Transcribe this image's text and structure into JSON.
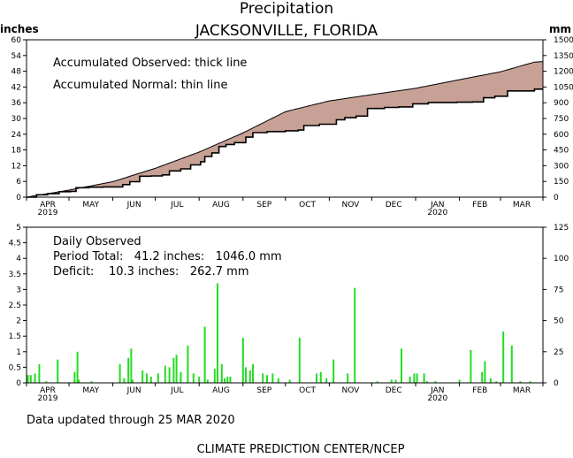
{
  "header": {
    "title": "Precipitation",
    "subtitle": "JACKSONVILLE, FLORIDA",
    "left_unit": "inches",
    "right_unit": "mm"
  },
  "footer": {
    "updated": "Data updated through 25 MAR 2020",
    "credit": "CLIMATE PREDICTION CENTER/NCEP"
  },
  "colors": {
    "deficit_fill": "#c7a096",
    "bars": "#22dd22",
    "axes": "#000000"
  },
  "chart_data": [
    {
      "type": "area",
      "title": "Accumulated",
      "annotations": [
        "Accumulated Observed: thick line",
        "Accumulated Normal: thin line"
      ],
      "x_tick_labels": [
        "APR",
        "MAY",
        "JUN",
        "JUL",
        "AUG",
        "SEP",
        "OCT",
        "NOV",
        "DEC",
        "JAN",
        "FEB",
        "MAR"
      ],
      "x_year_labels": [
        {
          "at": "APR",
          "text": "2019"
        },
        {
          "at": "JAN",
          "text": "2020"
        }
      ],
      "xlim": [
        "2019-04-01",
        "2020-03-31"
      ],
      "y_left": {
        "unit": "inches",
        "range": [
          0,
          60
        ],
        "ticks": [
          0,
          6,
          12,
          18,
          24,
          30,
          36,
          42,
          48,
          54,
          60
        ]
      },
      "y_right": {
        "unit": "mm",
        "range": [
          0,
          1500
        ],
        "ticks": [
          0,
          150,
          300,
          450,
          600,
          750,
          900,
          1050,
          1200,
          1350,
          1500
        ]
      },
      "grid": false,
      "series": [
        {
          "name": "Accumulated Observed",
          "style": "thick",
          "points": [
            [
              "2019-04-01",
              0
            ],
            [
              "2019-04-08",
              0.9
            ],
            [
              "2019-04-16",
              1.3
            ],
            [
              "2019-04-24",
              2.1
            ],
            [
              "2019-05-02",
              2.2
            ],
            [
              "2019-05-06",
              3.6
            ],
            [
              "2019-05-15",
              3.8
            ],
            [
              "2019-05-25",
              3.9
            ],
            [
              "2019-06-03",
              3.9
            ],
            [
              "2019-06-08",
              4.8
            ],
            [
              "2019-06-13",
              5.9
            ],
            [
              "2019-06-20",
              8.0
            ],
            [
              "2019-06-28",
              8.1
            ],
            [
              "2019-07-06",
              8.5
            ],
            [
              "2019-07-11",
              10.0
            ],
            [
              "2019-07-19",
              10.8
            ],
            [
              "2019-07-26",
              12.3
            ],
            [
              "2019-08-02",
              13.5
            ],
            [
              "2019-08-05",
              15.5
            ],
            [
              "2019-08-10",
              16.9
            ],
            [
              "2019-08-15",
              19.3
            ],
            [
              "2019-08-20",
              20.1
            ],
            [
              "2019-08-26",
              20.8
            ],
            [
              "2019-09-03",
              22.9
            ],
            [
              "2019-09-08",
              24.6
            ],
            [
              "2019-09-18",
              25.0
            ],
            [
              "2019-10-01",
              25.3
            ],
            [
              "2019-10-10",
              25.6
            ],
            [
              "2019-10-14",
              27.3
            ],
            [
              "2019-10-25",
              27.8
            ],
            [
              "2019-11-06",
              29.5
            ],
            [
              "2019-11-12",
              30.3
            ],
            [
              "2019-11-20",
              30.9
            ],
            [
              "2019-11-28",
              33.8
            ],
            [
              "2019-12-10",
              34.2
            ],
            [
              "2019-12-20",
              34.4
            ],
            [
              "2019-12-30",
              35.6
            ],
            [
              "2020-01-10",
              36.1
            ],
            [
              "2020-01-30",
              36.2
            ],
            [
              "2020-02-10",
              36.3
            ],
            [
              "2020-02-18",
              37.9
            ],
            [
              "2020-02-26",
              38.5
            ],
            [
              "2020-03-06",
              40.5
            ],
            [
              "2020-03-25",
              41.2
            ]
          ]
        },
        {
          "name": "Accumulated Normal",
          "style": "thin",
          "points": [
            [
              "2019-04-01",
              0
            ],
            [
              "2019-05-01",
              2.7
            ],
            [
              "2019-06-01",
              5.9
            ],
            [
              "2019-07-01",
              11.0
            ],
            [
              "2019-08-01",
              17.2
            ],
            [
              "2019-09-01",
              24.5
            ],
            [
              "2019-10-01",
              32.6
            ],
            [
              "2019-11-01",
              36.7
            ],
            [
              "2019-12-01",
              39.1
            ],
            [
              "2020-01-01",
              41.5
            ],
            [
              "2020-02-01",
              44.8
            ],
            [
              "2020-03-01",
              47.8
            ],
            [
              "2020-03-25",
              51.5
            ]
          ]
        }
      ]
    },
    {
      "type": "bar",
      "title": "Daily Observed",
      "annotations": [
        "Daily Observed",
        "Period Total:   41.2 inches:   1046.0 mm",
        "Deficit:    10.3 inches:   262.7 mm"
      ],
      "x_tick_labels": [
        "APR",
        "MAY",
        "JUN",
        "JUL",
        "AUG",
        "SEP",
        "OCT",
        "NOV",
        "DEC",
        "JAN",
        "FEB",
        "MAR"
      ],
      "x_year_labels": [
        {
          "at": "APR",
          "text": "2019"
        },
        {
          "at": "JAN",
          "text": "2020"
        }
      ],
      "xlim": [
        "2019-04-01",
        "2020-03-31"
      ],
      "y_left": {
        "unit": "inches",
        "range": [
          0,
          5
        ],
        "ticks": [
          0,
          0.5,
          1,
          1.5,
          2,
          2.5,
          3,
          3.5,
          4,
          4.5,
          5
        ]
      },
      "y_right": {
        "unit": "mm",
        "range": [
          0,
          125
        ],
        "ticks": [
          0,
          25,
          50,
          75,
          100,
          125
        ]
      },
      "grid": false,
      "period_total": {
        "inches": 41.2,
        "mm": 1046.0
      },
      "deficit": {
        "inches": 10.3,
        "mm": 262.7
      },
      "series": [
        {
          "name": "Daily Observed",
          "points": [
            [
              "2019-04-02",
              0.25
            ],
            [
              "2019-04-04",
              0.25
            ],
            [
              "2019-04-07",
              0.3
            ],
            [
              "2019-04-10",
              0.6
            ],
            [
              "2019-04-15",
              0.05
            ],
            [
              "2019-04-23",
              0.75
            ],
            [
              "2019-05-05",
              0.35
            ],
            [
              "2019-05-07",
              1.0
            ],
            [
              "2019-05-08",
              0.1
            ],
            [
              "2019-05-17",
              0.05
            ],
            [
              "2019-06-06",
              0.6
            ],
            [
              "2019-06-09",
              0.15
            ],
            [
              "2019-06-12",
              0.8
            ],
            [
              "2019-06-14",
              1.1
            ],
            [
              "2019-06-15",
              0.1
            ],
            [
              "2019-06-22",
              0.4
            ],
            [
              "2019-06-25",
              0.3
            ],
            [
              "2019-06-28",
              0.2
            ],
            [
              "2019-07-03",
              0.3
            ],
            [
              "2019-07-08",
              0.55
            ],
            [
              "2019-07-11",
              0.5
            ],
            [
              "2019-07-14",
              0.8
            ],
            [
              "2019-07-16",
              0.9
            ],
            [
              "2019-07-19",
              0.35
            ],
            [
              "2019-07-24",
              1.2
            ],
            [
              "2019-07-28",
              0.3
            ],
            [
              "2019-08-01",
              0.2
            ],
            [
              "2019-08-05",
              1.8
            ],
            [
              "2019-08-07",
              0.1
            ],
            [
              "2019-08-12",
              0.45
            ],
            [
              "2019-08-14",
              3.2
            ],
            [
              "2019-08-17",
              0.6
            ],
            [
              "2019-08-19",
              0.15
            ],
            [
              "2019-08-21",
              0.2
            ],
            [
              "2019-08-23",
              0.2
            ],
            [
              "2019-09-01",
              1.45
            ],
            [
              "2019-09-03",
              0.5
            ],
            [
              "2019-09-06",
              0.4
            ],
            [
              "2019-09-08",
              0.6
            ],
            [
              "2019-09-15",
              0.3
            ],
            [
              "2019-09-18",
              0.25
            ],
            [
              "2019-09-22",
              0.3
            ],
            [
              "2019-09-26",
              0.15
            ],
            [
              "2019-10-04",
              0.1
            ],
            [
              "2019-10-11",
              1.45
            ],
            [
              "2019-10-23",
              0.3
            ],
            [
              "2019-10-26",
              0.35
            ],
            [
              "2019-10-30",
              0.15
            ],
            [
              "2019-11-04",
              0.75
            ],
            [
              "2019-11-14",
              0.3
            ],
            [
              "2019-11-19",
              3.05
            ],
            [
              "2019-12-05",
              0.05
            ],
            [
              "2019-12-15",
              0.1
            ],
            [
              "2019-12-18",
              0.1
            ],
            [
              "2019-12-22",
              1.1
            ],
            [
              "2019-12-28",
              0.2
            ],
            [
              "2019-12-31",
              0.3
            ],
            [
              "2020-01-02",
              0.3
            ],
            [
              "2020-01-07",
              0.3
            ],
            [
              "2020-01-09",
              0.05
            ],
            [
              "2020-01-15",
              0.05
            ],
            [
              "2020-02-01",
              0.1
            ],
            [
              "2020-02-09",
              1.05
            ],
            [
              "2020-02-17",
              0.35
            ],
            [
              "2020-02-19",
              0.7
            ],
            [
              "2020-02-23",
              0.15
            ],
            [
              "2020-02-27",
              0.05
            ],
            [
              "2020-03-03",
              1.65
            ],
            [
              "2020-03-09",
              1.2
            ],
            [
              "2020-03-15",
              0.05
            ],
            [
              "2020-03-22",
              0.05
            ]
          ]
        }
      ]
    }
  ]
}
